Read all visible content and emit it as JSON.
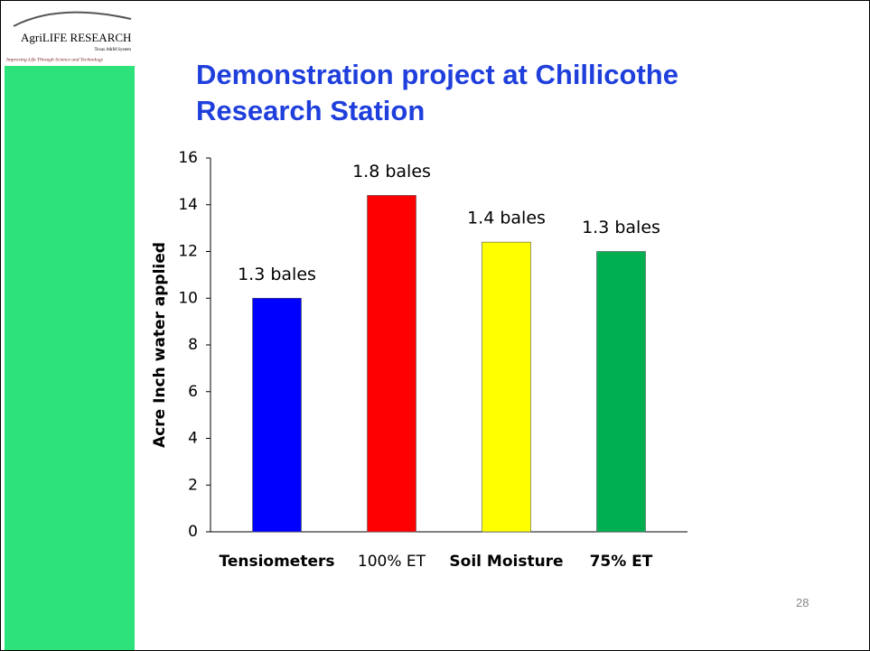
{
  "logo": {
    "name": "AgriLIFE RESEARCH",
    "system": "Texas A&M System",
    "tagline": "Improving Life Through Science and Technology"
  },
  "page_number": "28",
  "chart_data": {
    "type": "bar",
    "title": "Demonstration project at Chillicothe Research Station",
    "y_label": "Acre Inch water applied",
    "categories": [
      "Tensiometers",
      "100% ET",
      "Soil Moisture",
      "75% ET"
    ],
    "values": [
      10,
      14.4,
      12.4,
      12
    ],
    "colors": [
      "#0000ff",
      "#ff0000",
      "#ffff00",
      "#00b050"
    ],
    "bar_notes": [
      "1.3 bales",
      "1.8 bales",
      "1.4 bales",
      "1.3 bales"
    ],
    "ylim": [
      0,
      16
    ],
    "yticks": [
      0,
      2,
      4,
      6,
      8,
      10,
      12,
      14,
      16
    ],
    "grid": false
  }
}
